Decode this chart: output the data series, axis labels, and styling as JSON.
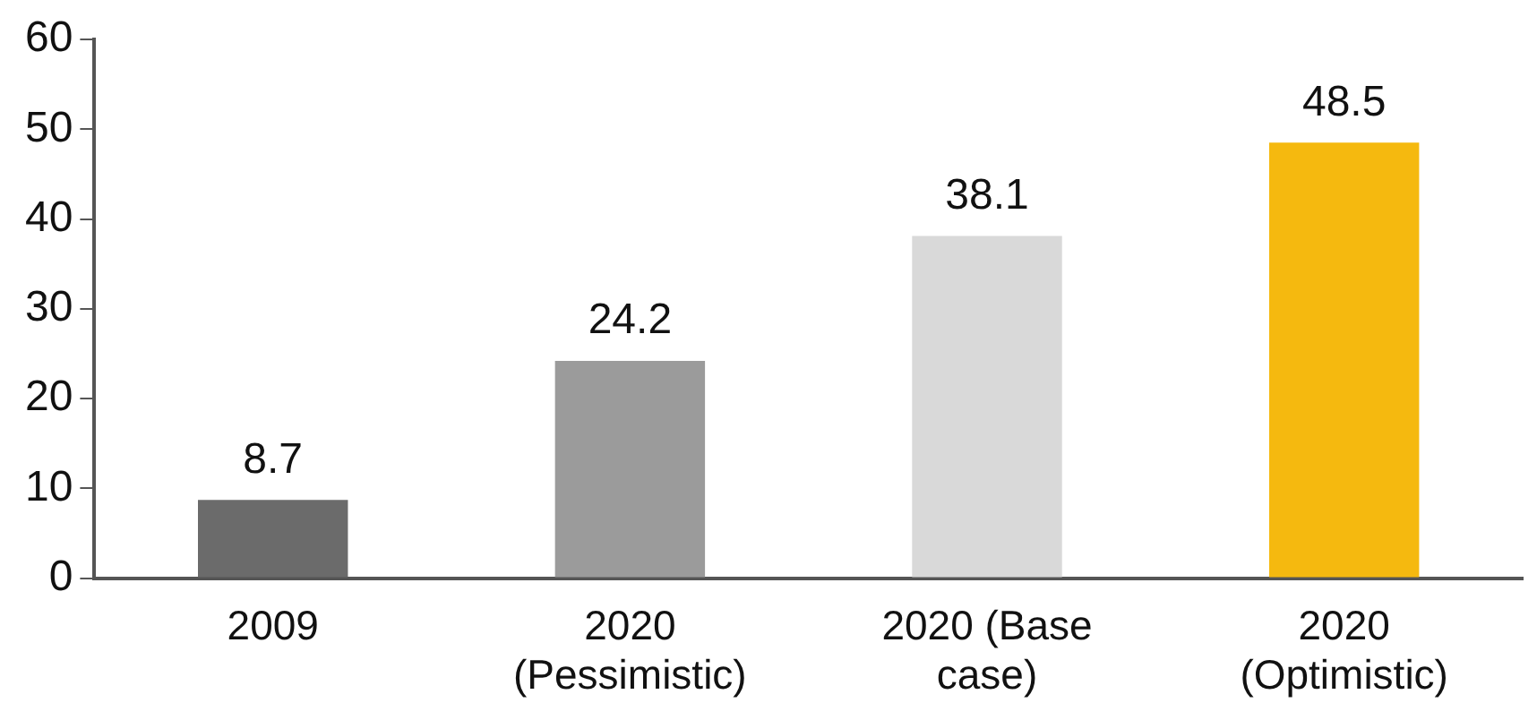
{
  "chart_data": {
    "type": "bar",
    "categories": [
      "2009",
      "2020 (Pessimistic)",
      "2020 (Base case)",
      "2020 (Optimistic)"
    ],
    "values": [
      8.7,
      24.2,
      38.1,
      48.5
    ],
    "colors": [
      "#6b6b6b",
      "#9b9b9b",
      "#d9d9d9",
      "#f5b90f"
    ],
    "ylim": [
      0,
      60
    ],
    "yticks": [
      0,
      10,
      20,
      30,
      40,
      50,
      60
    ],
    "grid": false,
    "legend": false,
    "data_labels": true
  }
}
